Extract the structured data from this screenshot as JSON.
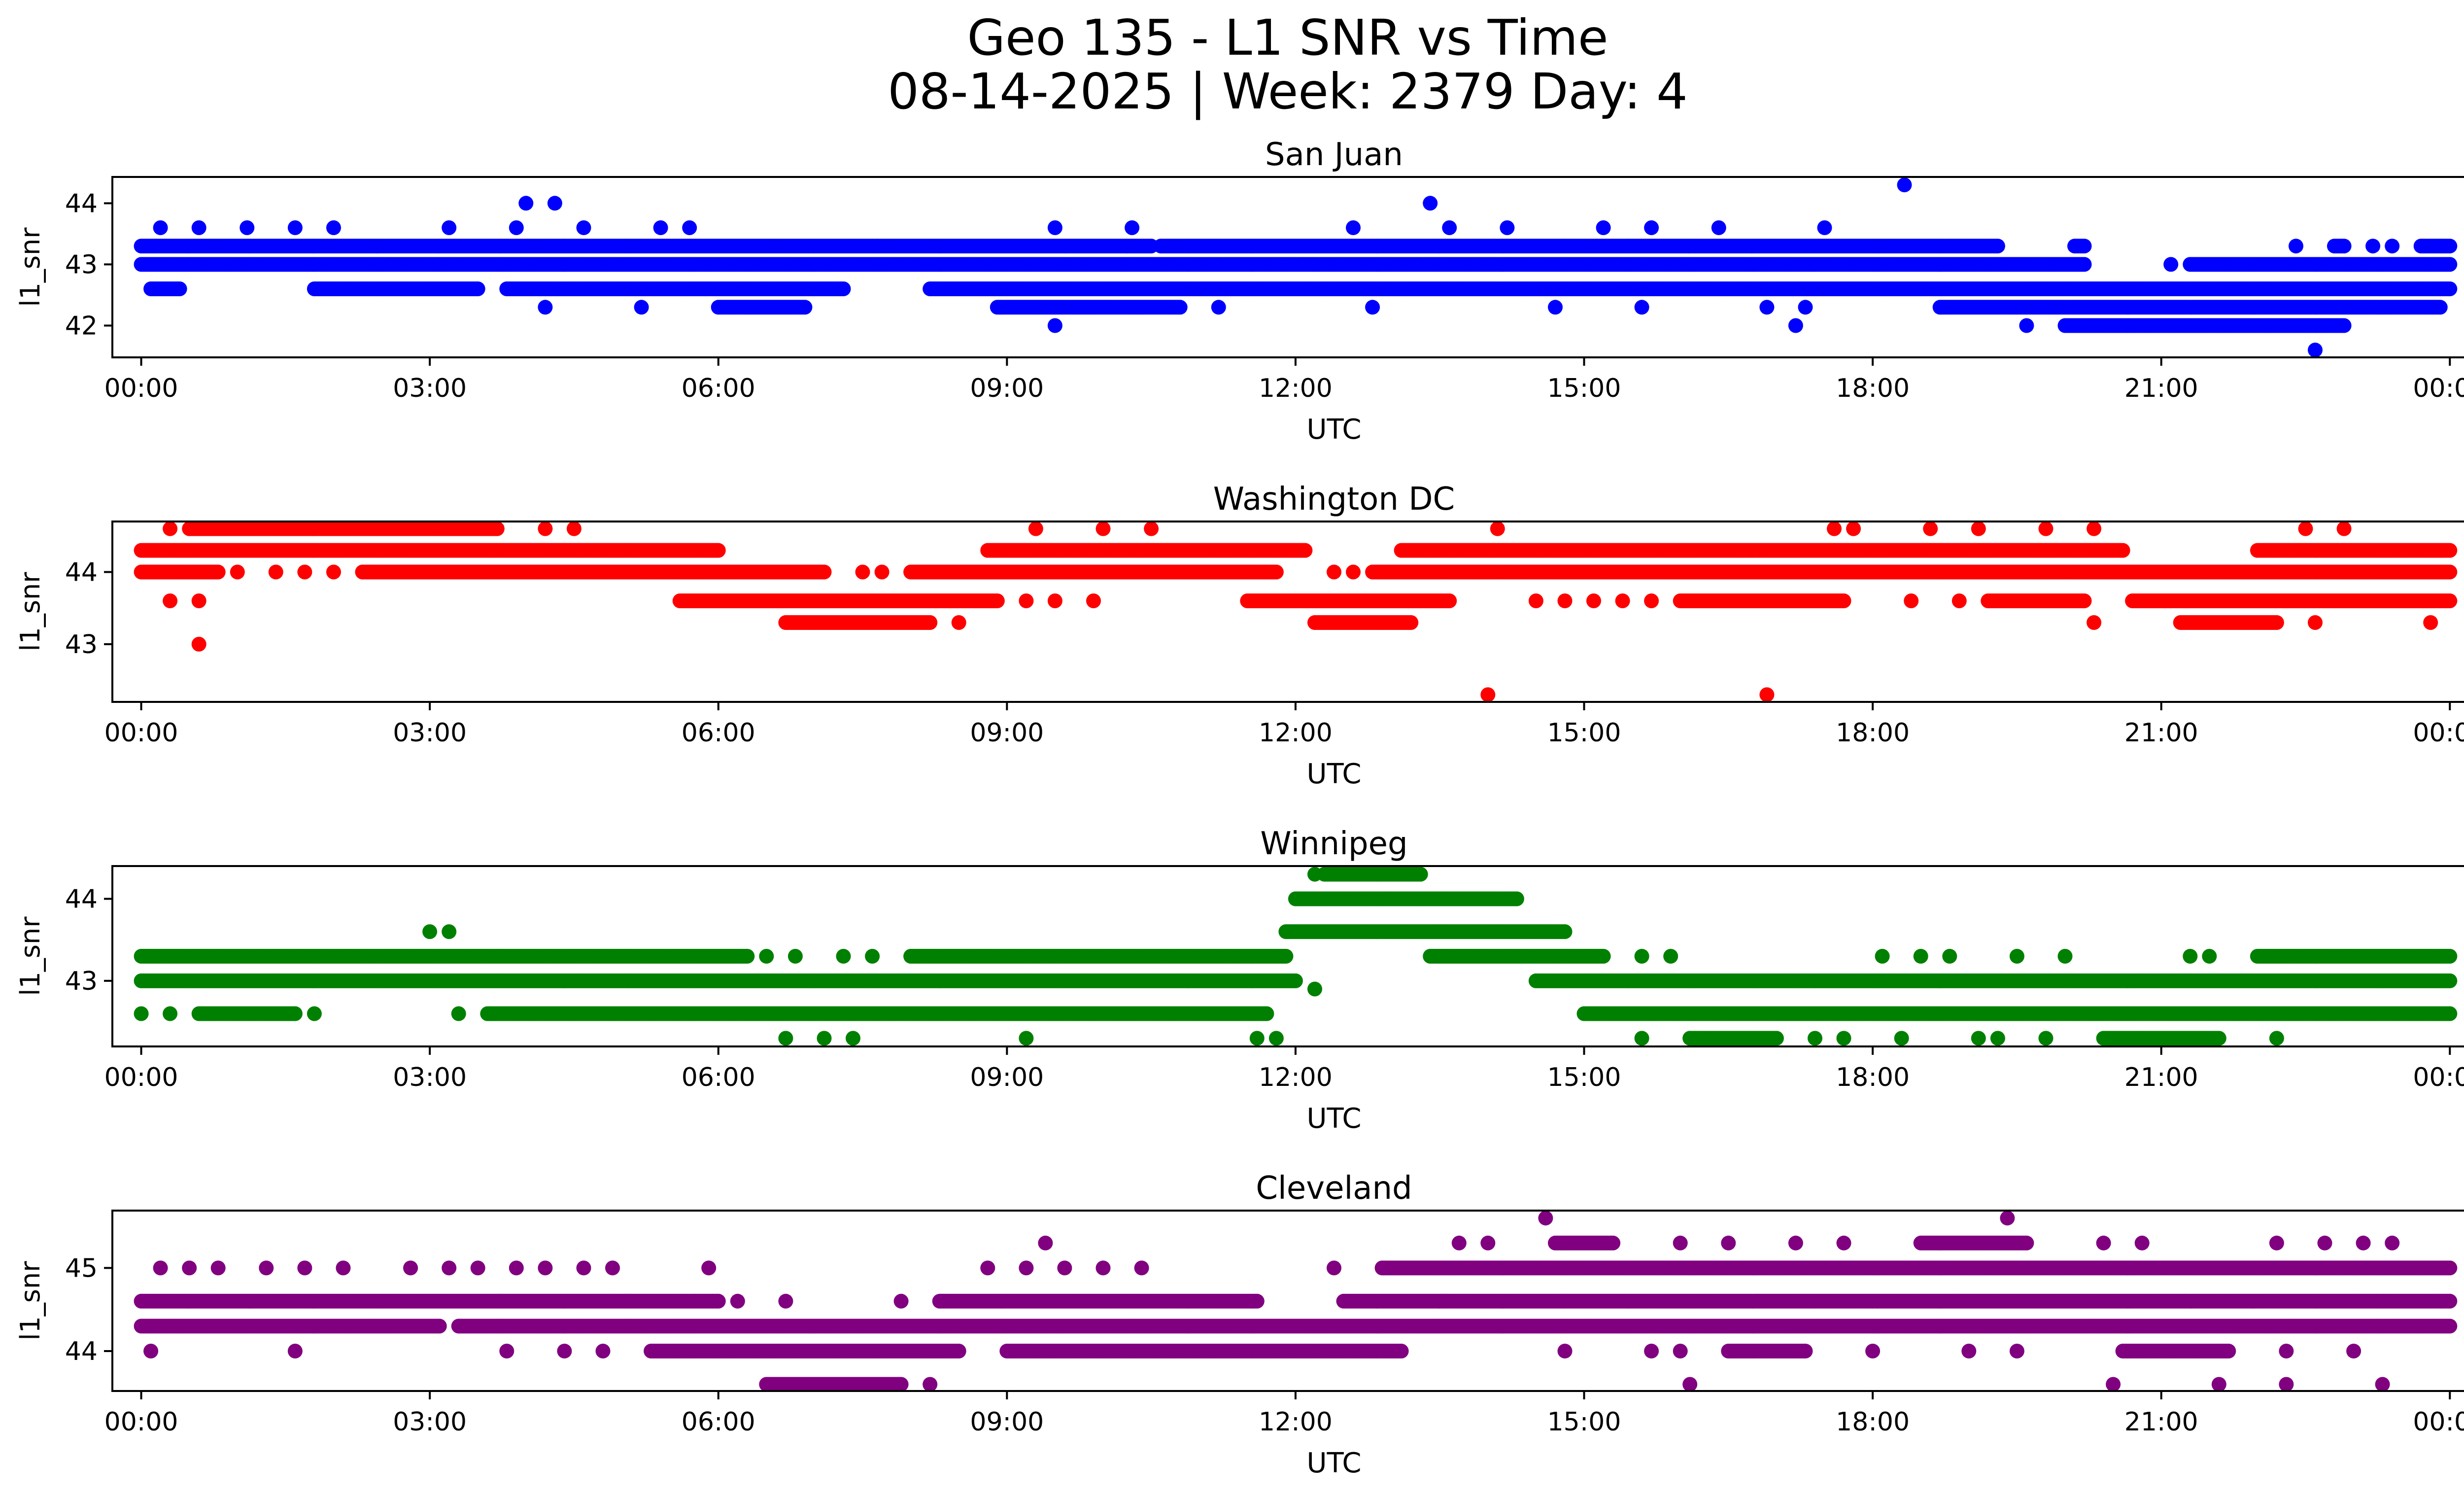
{
  "figure": {
    "title_line1": "Geo 135 - L1 SNR vs Time",
    "title_line2": "08-14-2025 | Week: 2379 Day: 4"
  },
  "chart_data": [
    {
      "type": "scatter",
      "title": "San Juan",
      "xlabel": "UTC",
      "ylabel": "l1_snr",
      "color": "#0000ff",
      "xlim": [
        -0.3,
        25.1
      ],
      "ylim": [
        41.48,
        44.43
      ],
      "yticks": [
        42,
        43,
        44
      ],
      "bands": [
        {
          "y": 43.3,
          "segments": [
            [
              0,
              10.5
            ],
            [
              10.6,
              19.3
            ],
            [
              20.1,
              20.2
            ],
            [
              22.8,
              22.9
            ],
            [
              23.7,
              24
            ]
          ]
        },
        {
          "y": 43.0,
          "segments": [
            [
              0,
              20.2
            ],
            [
              21.3,
              24
            ]
          ]
        },
        {
          "y": 42.6,
          "segments": [
            [
              0.1,
              0.4
            ],
            [
              1.8,
              3.5
            ],
            [
              3.8,
              7.3
            ],
            [
              8.2,
              24
            ]
          ]
        },
        {
          "y": 42.3,
          "segments": [
            [
              6.0,
              6.9
            ],
            [
              8.9,
              10.8
            ],
            [
              18.7,
              23.9
            ]
          ]
        },
        {
          "y": 42.0,
          "segments": [
            [
              20.0,
              22.9
            ]
          ]
        }
      ],
      "points": [
        {
          "x": 18.33,
          "y": 44.3
        },
        {
          "x": 4.0,
          "y": 44.0
        },
        {
          "x": 4.3,
          "y": 44.0
        },
        {
          "x": 13.4,
          "y": 44.0
        },
        {
          "x": 0.2,
          "y": 43.6
        },
        {
          "x": 0.6,
          "y": 43.6
        },
        {
          "x": 1.1,
          "y": 43.6
        },
        {
          "x": 1.6,
          "y": 43.6
        },
        {
          "x": 2.0,
          "y": 43.6
        },
        {
          "x": 3.2,
          "y": 43.6
        },
        {
          "x": 3.9,
          "y": 43.6
        },
        {
          "x": 4.6,
          "y": 43.6
        },
        {
          "x": 5.4,
          "y": 43.6
        },
        {
          "x": 5.7,
          "y": 43.6
        },
        {
          "x": 9.5,
          "y": 43.6
        },
        {
          "x": 10.3,
          "y": 43.6
        },
        {
          "x": 12.6,
          "y": 43.6
        },
        {
          "x": 13.6,
          "y": 43.6
        },
        {
          "x": 14.2,
          "y": 43.6
        },
        {
          "x": 15.2,
          "y": 43.6
        },
        {
          "x": 15.7,
          "y": 43.6
        },
        {
          "x": 16.4,
          "y": 43.6
        },
        {
          "x": 17.5,
          "y": 43.6
        },
        {
          "x": 4.2,
          "y": 42.3
        },
        {
          "x": 5.2,
          "y": 42.3
        },
        {
          "x": 11.2,
          "y": 42.3
        },
        {
          "x": 12.8,
          "y": 42.3
        },
        {
          "x": 14.7,
          "y": 42.3
        },
        {
          "x": 15.6,
          "y": 42.3
        },
        {
          "x": 16.9,
          "y": 42.3
        },
        {
          "x": 17.3,
          "y": 42.3
        },
        {
          "x": 9.5,
          "y": 42.0
        },
        {
          "x": 17.2,
          "y": 42.0
        },
        {
          "x": 19.6,
          "y": 42.0
        },
        {
          "x": 21.1,
          "y": 43.0
        },
        {
          "x": 22.4,
          "y": 43.3
        },
        {
          "x": 23.2,
          "y": 43.3
        },
        {
          "x": 23.4,
          "y": 43.3
        },
        {
          "x": 22.6,
          "y": 41.6
        }
      ]
    },
    {
      "type": "scatter",
      "title": "Washington DC",
      "xlabel": "UTC",
      "ylabel": "l1_snr",
      "color": "#ff0000",
      "xlim": [
        -0.3,
        25.1
      ],
      "ylim": [
        42.2,
        44.7
      ],
      "yticks": [
        43,
        44
      ],
      "bands": [
        {
          "y": 44.6,
          "segments": [
            [
              0.5,
              3.7
            ]
          ]
        },
        {
          "y": 44.3,
          "segments": [
            [
              0,
              6.0
            ],
            [
              8.8,
              12.1
            ],
            [
              13.1,
              20.6
            ],
            [
              22.0,
              24
            ]
          ]
        },
        {
          "y": 44.0,
          "segments": [
            [
              0,
              0.8
            ],
            [
              2.3,
              7.1
            ],
            [
              8.0,
              11.8
            ],
            [
              12.8,
              24
            ]
          ]
        },
        {
          "y": 43.6,
          "segments": [
            [
              5.6,
              8.9
            ],
            [
              11.5,
              13.6
            ],
            [
              16.0,
              17.7
            ],
            [
              19.2,
              20.2
            ],
            [
              20.7,
              24
            ]
          ]
        },
        {
          "y": 43.3,
          "segments": [
            [
              6.7,
              8.2
            ],
            [
              12.2,
              13.2
            ],
            [
              21.2,
              22.2
            ]
          ]
        }
      ],
      "points": [
        {
          "x": 0.3,
          "y": 44.6
        },
        {
          "x": 4.2,
          "y": 44.6
        },
        {
          "x": 4.5,
          "y": 44.6
        },
        {
          "x": 9.3,
          "y": 44.6
        },
        {
          "x": 10.0,
          "y": 44.6
        },
        {
          "x": 10.5,
          "y": 44.6
        },
        {
          "x": 14.1,
          "y": 44.6
        },
        {
          "x": 17.6,
          "y": 44.6
        },
        {
          "x": 17.8,
          "y": 44.6
        },
        {
          "x": 18.6,
          "y": 44.6
        },
        {
          "x": 19.1,
          "y": 44.6
        },
        {
          "x": 19.8,
          "y": 44.6
        },
        {
          "x": 20.3,
          "y": 44.6
        },
        {
          "x": 22.5,
          "y": 44.6
        },
        {
          "x": 22.9,
          "y": 44.6
        },
        {
          "x": 1.0,
          "y": 44.0
        },
        {
          "x": 1.4,
          "y": 44.0
        },
        {
          "x": 1.7,
          "y": 44.0
        },
        {
          "x": 2.0,
          "y": 44.0
        },
        {
          "x": 7.5,
          "y": 44.0
        },
        {
          "x": 7.7,
          "y": 44.0
        },
        {
          "x": 12.4,
          "y": 44.0
        },
        {
          "x": 12.6,
          "y": 44.0
        },
        {
          "x": 0.3,
          "y": 43.6
        },
        {
          "x": 0.6,
          "y": 43.6
        },
        {
          "x": 9.2,
          "y": 43.6
        },
        {
          "x": 9.5,
          "y": 43.6
        },
        {
          "x": 9.9,
          "y": 43.6
        },
        {
          "x": 14.5,
          "y": 43.6
        },
        {
          "x": 14.8,
          "y": 43.6
        },
        {
          "x": 15.1,
          "y": 43.6
        },
        {
          "x": 15.4,
          "y": 43.6
        },
        {
          "x": 15.7,
          "y": 43.6
        },
        {
          "x": 18.4,
          "y": 43.6
        },
        {
          "x": 18.9,
          "y": 43.6
        },
        {
          "x": 8.5,
          "y": 43.3
        },
        {
          "x": 20.3,
          "y": 43.3
        },
        {
          "x": 22.6,
          "y": 43.3
        },
        {
          "x": 23.8,
          "y": 43.3
        },
        {
          "x": 0.6,
          "y": 43.0
        },
        {
          "x": 14.0,
          "y": 42.3
        },
        {
          "x": 16.9,
          "y": 42.3
        }
      ]
    },
    {
      "type": "scatter",
      "title": "Winnipeg",
      "xlabel": "UTC",
      "ylabel": "l1_snr",
      "color": "#008000",
      "xlim": [
        -0.3,
        25.1
      ],
      "ylim": [
        42.2,
        44.4
      ],
      "yticks": [
        43,
        44
      ],
      "bands": [
        {
          "y": 44.3,
          "segments": [
            [
              12.3,
              13.3
            ]
          ]
        },
        {
          "y": 44.0,
          "segments": [
            [
              12.0,
              14.3
            ]
          ]
        },
        {
          "y": 43.6,
          "segments": [
            [
              11.9,
              14.8
            ]
          ]
        },
        {
          "y": 43.3,
          "segments": [
            [
              0,
              6.3
            ],
            [
              8.0,
              11.9
            ],
            [
              13.4,
              15.2
            ],
            [
              22.0,
              24
            ]
          ]
        },
        {
          "y": 43.0,
          "segments": [
            [
              0,
              12.0
            ],
            [
              14.5,
              24
            ]
          ]
        },
        {
          "y": 42.6,
          "segments": [
            [
              0.6,
              1.6
            ],
            [
              3.6,
              11.7
            ],
            [
              15.0,
              24
            ]
          ]
        },
        {
          "y": 42.3,
          "segments": [
            [
              16.1,
              17.0
            ],
            [
              20.4,
              21.6
            ]
          ]
        }
      ],
      "points": [
        {
          "x": 3.0,
          "y": 43.6
        },
        {
          "x": 3.2,
          "y": 43.6
        },
        {
          "x": 12.2,
          "y": 44.3
        },
        {
          "x": 6.5,
          "y": 43.3
        },
        {
          "x": 6.8,
          "y": 43.3
        },
        {
          "x": 7.3,
          "y": 43.3
        },
        {
          "x": 7.6,
          "y": 43.3
        },
        {
          "x": 15.6,
          "y": 43.3
        },
        {
          "x": 15.9,
          "y": 43.3
        },
        {
          "x": 18.1,
          "y": 43.3
        },
        {
          "x": 18.5,
          "y": 43.3
        },
        {
          "x": 18.8,
          "y": 43.3
        },
        {
          "x": 19.5,
          "y": 43.3
        },
        {
          "x": 20.0,
          "y": 43.3
        },
        {
          "x": 21.3,
          "y": 43.3
        },
        {
          "x": 21.5,
          "y": 43.3
        },
        {
          "x": 12.2,
          "y": 42.9
        },
        {
          "x": 0.0,
          "y": 42.6
        },
        {
          "x": 0.3,
          "y": 42.6
        },
        {
          "x": 1.8,
          "y": 42.6
        },
        {
          "x": 3.3,
          "y": 42.6
        },
        {
          "x": 6.7,
          "y": 42.3
        },
        {
          "x": 7.1,
          "y": 42.3
        },
        {
          "x": 7.4,
          "y": 42.3
        },
        {
          "x": 9.2,
          "y": 42.3
        },
        {
          "x": 11.6,
          "y": 42.3
        },
        {
          "x": 11.8,
          "y": 42.3
        },
        {
          "x": 15.6,
          "y": 42.3
        },
        {
          "x": 17.4,
          "y": 42.3
        },
        {
          "x": 17.7,
          "y": 42.3
        },
        {
          "x": 18.3,
          "y": 42.3
        },
        {
          "x": 19.1,
          "y": 42.3
        },
        {
          "x": 19.3,
          "y": 42.3
        },
        {
          "x": 19.8,
          "y": 42.3
        },
        {
          "x": 22.2,
          "y": 42.3
        }
      ]
    },
    {
      "type": "scatter",
      "title": "Cleveland",
      "xlabel": "UTC",
      "ylabel": "l1_snr",
      "color": "#800080",
      "xlim": [
        -0.3,
        25.1
      ],
      "ylim": [
        43.52,
        45.69
      ],
      "yticks": [
        44,
        45
      ],
      "bands": [
        {
          "y": 45.3,
          "segments": [
            [
              14.7,
              15.3
            ],
            [
              18.5,
              19.6
            ]
          ]
        },
        {
          "y": 45.0,
          "segments": [
            [
              12.9,
              24
            ]
          ]
        },
        {
          "y": 44.6,
          "segments": [
            [
              0,
              6.0
            ],
            [
              8.3,
              11.6
            ],
            [
              12.5,
              24
            ]
          ]
        },
        {
          "y": 44.3,
          "segments": [
            [
              0,
              3.1
            ],
            [
              3.3,
              24
            ]
          ]
        },
        {
          "y": 44.0,
          "segments": [
            [
              5.3,
              8.5
            ],
            [
              9.0,
              13.1
            ],
            [
              16.5,
              17.3
            ],
            [
              20.6,
              21.7
            ]
          ]
        },
        {
          "y": 43.6,
          "segments": [
            [
              6.5,
              7.9
            ]
          ]
        }
      ],
      "points": [
        {
          "x": 14.6,
          "y": 45.6
        },
        {
          "x": 19.4,
          "y": 45.6
        },
        {
          "x": 9.4,
          "y": 45.3
        },
        {
          "x": 13.7,
          "y": 45.3
        },
        {
          "x": 14.0,
          "y": 45.3
        },
        {
          "x": 16.0,
          "y": 45.3
        },
        {
          "x": 16.5,
          "y": 45.3
        },
        {
          "x": 17.2,
          "y": 45.3
        },
        {
          "x": 17.7,
          "y": 45.3
        },
        {
          "x": 20.4,
          "y": 45.3
        },
        {
          "x": 20.8,
          "y": 45.3
        },
        {
          "x": 22.2,
          "y": 45.3
        },
        {
          "x": 22.7,
          "y": 45.3
        },
        {
          "x": 23.1,
          "y": 45.3
        },
        {
          "x": 23.4,
          "y": 45.3
        },
        {
          "x": 0.2,
          "y": 45.0
        },
        {
          "x": 0.5,
          "y": 45.0
        },
        {
          "x": 0.8,
          "y": 45.0
        },
        {
          "x": 1.3,
          "y": 45.0
        },
        {
          "x": 1.7,
          "y": 45.0
        },
        {
          "x": 2.1,
          "y": 45.0
        },
        {
          "x": 2.8,
          "y": 45.0
        },
        {
          "x": 3.2,
          "y": 45.0
        },
        {
          "x": 3.5,
          "y": 45.0
        },
        {
          "x": 3.9,
          "y": 45.0
        },
        {
          "x": 4.2,
          "y": 45.0
        },
        {
          "x": 4.6,
          "y": 45.0
        },
        {
          "x": 4.9,
          "y": 45.0
        },
        {
          "x": 5.9,
          "y": 45.0
        },
        {
          "x": 8.8,
          "y": 45.0
        },
        {
          "x": 9.2,
          "y": 45.0
        },
        {
          "x": 9.6,
          "y": 45.0
        },
        {
          "x": 10.0,
          "y": 45.0
        },
        {
          "x": 10.4,
          "y": 45.0
        },
        {
          "x": 12.4,
          "y": 45.0
        },
        {
          "x": 6.2,
          "y": 44.6
        },
        {
          "x": 6.7,
          "y": 44.6
        },
        {
          "x": 7.9,
          "y": 44.6
        },
        {
          "x": 0.1,
          "y": 44.0
        },
        {
          "x": 1.6,
          "y": 44.0
        },
        {
          "x": 3.8,
          "y": 44.0
        },
        {
          "x": 4.4,
          "y": 44.0
        },
        {
          "x": 4.8,
          "y": 44.0
        },
        {
          "x": 14.8,
          "y": 44.0
        },
        {
          "x": 15.7,
          "y": 44.0
        },
        {
          "x": 16.0,
          "y": 44.0
        },
        {
          "x": 18.0,
          "y": 44.0
        },
        {
          "x": 19.0,
          "y": 44.0
        },
        {
          "x": 19.5,
          "y": 44.0
        },
        {
          "x": 22.3,
          "y": 44.0
        },
        {
          "x": 23.0,
          "y": 44.0
        },
        {
          "x": 16.1,
          "y": 43.6
        },
        {
          "x": 20.5,
          "y": 43.6
        },
        {
          "x": 21.6,
          "y": 43.6
        },
        {
          "x": 22.3,
          "y": 43.6
        },
        {
          "x": 23.3,
          "y": 43.6
        },
        {
          "x": 8.2,
          "y": 43.6
        }
      ]
    }
  ],
  "x_ticks": [
    {
      "value": 0,
      "label": "00:00"
    },
    {
      "value": 3,
      "label": "03:00"
    },
    {
      "value": 6,
      "label": "06:00"
    },
    {
      "value": 9,
      "label": "09:00"
    },
    {
      "value": 12,
      "label": "12:00"
    },
    {
      "value": 15,
      "label": "15:00"
    },
    {
      "value": 18,
      "label": "18:00"
    },
    {
      "value": 21,
      "label": "21:00"
    },
    {
      "value": 24,
      "label": "00:00"
    }
  ]
}
